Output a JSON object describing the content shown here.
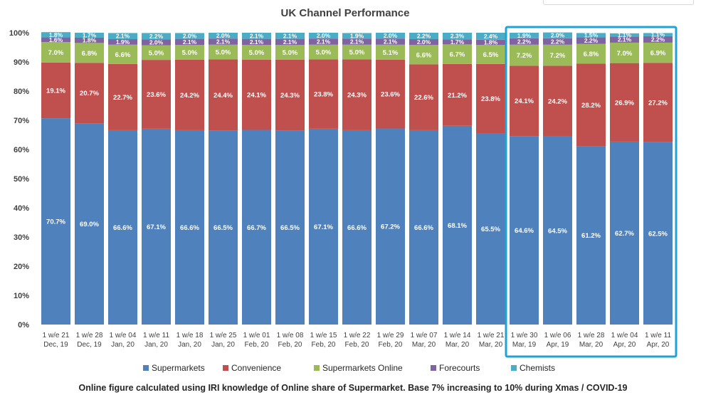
{
  "chart_data": {
    "type": "bar",
    "stacked": true,
    "title": "UK Channel Performance",
    "categories": [
      [
        "1 w/e 21",
        "Dec, 19"
      ],
      [
        "1 w/e 28",
        "Dec, 19"
      ],
      [
        "1 w/e 04",
        "Jan, 20"
      ],
      [
        "1 w/e 11",
        "Jan, 20"
      ],
      [
        "1 w/e 18",
        "Jan, 20"
      ],
      [
        "1 w/e 25",
        "Jan, 20"
      ],
      [
        "1 w/e 01",
        "Feb, 20"
      ],
      [
        "1 w/e 08",
        "Feb, 20"
      ],
      [
        "1 w/e 15",
        "Feb, 20"
      ],
      [
        "1 w/e 22",
        "Feb, 20"
      ],
      [
        "1 w/e 29",
        "Feb, 20"
      ],
      [
        "1 w/e 07",
        "Mar, 20"
      ],
      [
        "1 w/e 14",
        "Mar, 20"
      ],
      [
        "1 w/e 21",
        "Mar, 20"
      ],
      [
        "1 w/e 30",
        "Mar, 19"
      ],
      [
        "1 w/e 06",
        "Apr, 19"
      ],
      [
        "1 w/e 28",
        "Mar, 20"
      ],
      [
        "1 w/e 04",
        "Apr, 20"
      ],
      [
        "1 w/e 11",
        "Apr, 20"
      ]
    ],
    "yticks": [
      "0%",
      "10%",
      "20%",
      "30%",
      "40%",
      "50%",
      "60%",
      "70%",
      "80%",
      "90%",
      "100%"
    ],
    "ylim": [
      0,
      100
    ],
    "series": [
      {
        "name": "Supermarkets",
        "color": "#4f81bd",
        "values": [
          70.7,
          69.0,
          66.6,
          67.1,
          66.6,
          66.5,
          66.7,
          66.5,
          67.1,
          66.6,
          67.2,
          66.6,
          68.1,
          65.5,
          64.6,
          64.5,
          61.2,
          62.7,
          62.5
        ]
      },
      {
        "name": "Convenience",
        "color": "#c0504d",
        "values": [
          19.1,
          20.7,
          22.7,
          23.6,
          24.2,
          24.4,
          24.1,
          24.3,
          23.8,
          24.3,
          23.6,
          22.6,
          21.2,
          23.8,
          24.1,
          24.2,
          28.2,
          26.9,
          27.2
        ]
      },
      {
        "name": "Supermarkets Online",
        "color": "#9bbb59",
        "values": [
          7.0,
          6.8,
          6.6,
          5.0,
          5.0,
          5.0,
          5.0,
          5.0,
          5.0,
          5.0,
          5.1,
          6.6,
          6.7,
          6.5,
          7.2,
          7.2,
          6.8,
          7.0,
          6.9
        ]
      },
      {
        "name": "Forecourts",
        "color": "#8064a2",
        "values": [
          1.6,
          1.8,
          1.9,
          2.0,
          2.1,
          2.1,
          2.1,
          2.1,
          2.1,
          2.1,
          2.1,
          2.0,
          1.7,
          1.8,
          2.2,
          2.2,
          2.2,
          2.1,
          2.2
        ]
      },
      {
        "name": "Chemists",
        "color": "#4bacc6",
        "values": [
          1.8,
          1.7,
          2.1,
          2.2,
          2.0,
          2.0,
          2.1,
          2.1,
          2.0,
          1.9,
          2.0,
          2.2,
          2.3,
          2.4,
          1.9,
          2.0,
          1.5,
          1.1,
          1.1
        ]
      }
    ],
    "highlight": {
      "from_index": 14,
      "to_index": 18,
      "color": "#1fa3d6"
    },
    "legend": "bottom",
    "grid": false,
    "footnote": "Online figure calculated using IRI knowledge of Online share of Supermarket. Base 7% increasing to 10% during Xmas / COVID-19"
  }
}
